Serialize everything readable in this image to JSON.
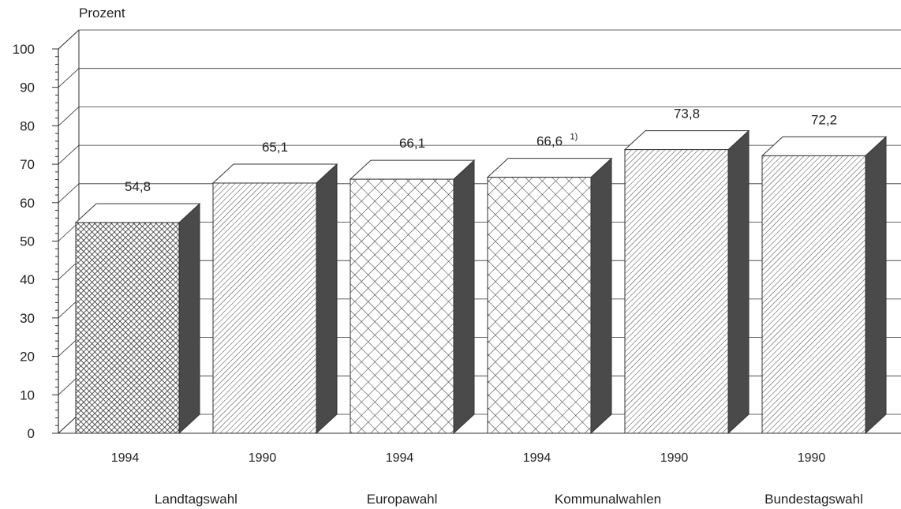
{
  "chart_data": {
    "type": "bar",
    "ylabel": "Prozent",
    "ylim": [
      0,
      100
    ],
    "yticks": [
      0,
      10,
      20,
      30,
      40,
      50,
      60,
      70,
      80,
      90,
      100
    ],
    "grid": true,
    "bars": [
      {
        "year": "1994",
        "value": 54.8,
        "label": "54,8",
        "pattern": "dense-crosshatch"
      },
      {
        "year": "1990",
        "value": 65.1,
        "label": "65,1",
        "pattern": "diagonal"
      },
      {
        "year": "1994",
        "value": 66.1,
        "label": "66,1",
        "pattern": "crosshatch"
      },
      {
        "year": "1994",
        "value": 66.6,
        "label": "66,6",
        "note": "1)",
        "pattern": "crosshatch"
      },
      {
        "year": "1990",
        "value": 73.8,
        "label": "73,8",
        "pattern": "diagonal"
      },
      {
        "year": "1990",
        "value": 72.2,
        "label": "72,2",
        "pattern": "diagonal"
      }
    ],
    "groups": [
      {
        "label": "Landtagswahl",
        "bars": [
          0,
          1
        ]
      },
      {
        "label": "Europawahl",
        "bars": [
          2
        ]
      },
      {
        "label": "Kommunalwahlen",
        "bars": [
          3,
          4
        ]
      },
      {
        "label": "Bundestagswahl",
        "bars": [
          5
        ]
      }
    ]
  },
  "colors": {
    "line": "#333333",
    "side": "#4a4a4a",
    "pattern": "#2a2a2a",
    "background": "#ffffff"
  }
}
